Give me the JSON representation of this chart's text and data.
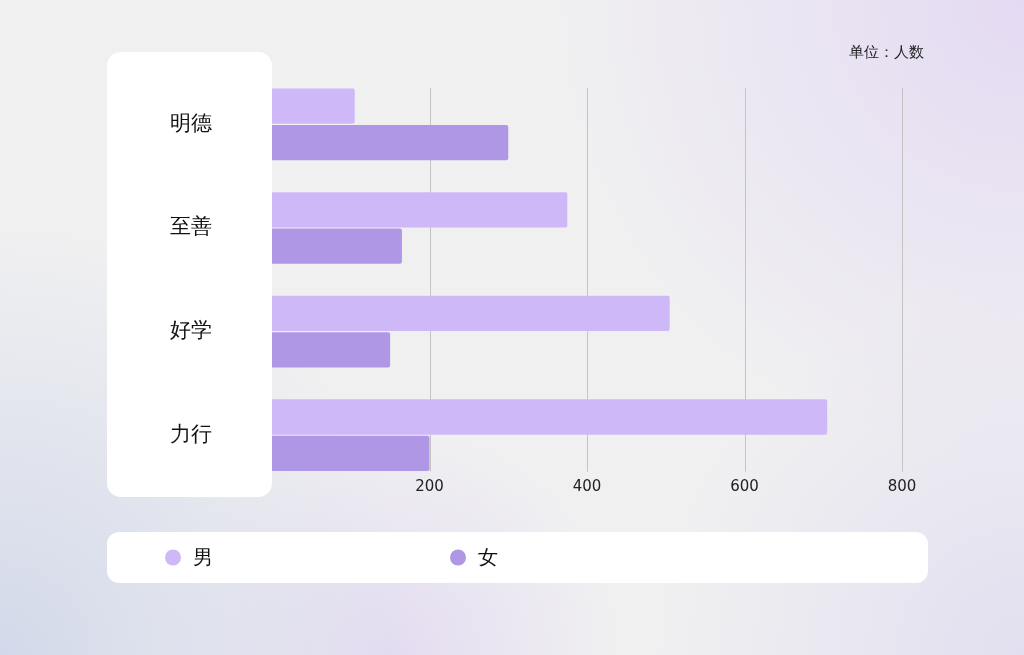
{
  "chart_data": {
    "type": "bar",
    "orientation": "horizontal",
    "categories": [
      "明德",
      "至善",
      "好学",
      "力行"
    ],
    "series": [
      {
        "name": "男",
        "color": "#cfb8f8",
        "values": [
          105,
          375,
          505,
          705
        ]
      },
      {
        "name": "女",
        "color": "#b097e5",
        "values": [
          300,
          165,
          150,
          200
        ]
      }
    ],
    "xlim": [
      0,
      800
    ],
    "xticks": [
      200,
      400,
      600,
      800
    ],
    "grid": "x",
    "legend": "bottom",
    "annotations": [
      "单位：人数"
    ]
  }
}
